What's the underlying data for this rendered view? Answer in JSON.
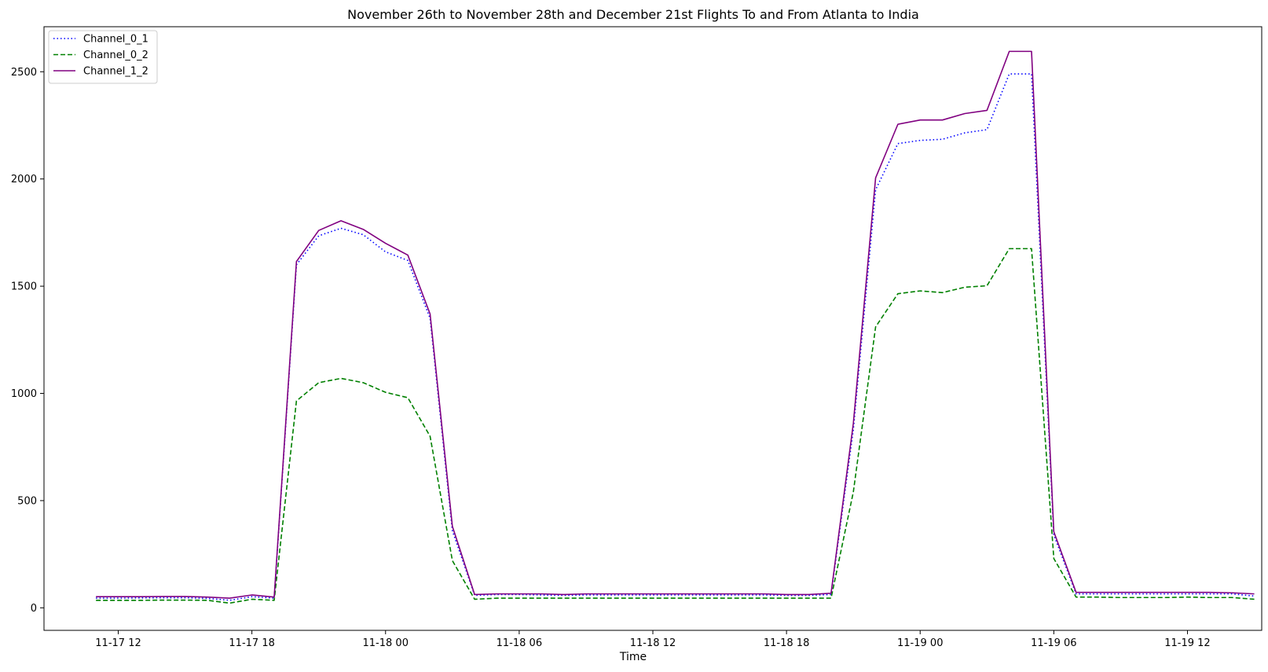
{
  "chart_data": {
    "type": "line",
    "title": "November 26th to November 28th and December 21st Flights To and From Atlanta to India",
    "xlabel": "Time",
    "ylabel": "",
    "x_start": "2023-11-17 11:00",
    "x_step_hours": 1,
    "xlim": [
      "2023-11-17 08:40",
      "2023-11-19 15:20"
    ],
    "ylim": [
      -105,
      2710
    ],
    "x_ticks": [
      "11-17 12",
      "11-17 18",
      "11-18 00",
      "11-18 06",
      "11-18 12",
      "11-18 18",
      "11-19 00",
      "11-19 06",
      "11-19 12"
    ],
    "y_ticks": [
      0,
      500,
      1000,
      1500,
      2000,
      2500
    ],
    "grid": false,
    "legend_position": "top-left",
    "series": [
      {
        "name": "Channel_0_1",
        "color": "#0000ff",
        "style": "dotted",
        "values": [
          45,
          45,
          46,
          47,
          47,
          44,
          35,
          52,
          45,
          1600,
          1735,
          1770,
          1740,
          1660,
          1620,
          1350,
          360,
          58,
          62,
          62,
          60,
          58,
          60,
          60,
          60,
          60,
          60,
          60,
          60,
          60,
          60,
          58,
          58,
          62,
          830,
          1950,
          2165,
          2180,
          2185,
          2215,
          2230,
          2490,
          2490,
          340,
          65,
          65,
          65,
          65,
          65,
          65,
          65,
          65,
          55
        ]
      },
      {
        "name": "Channel_0_2",
        "color": "#008000",
        "style": "dashed",
        "values": [
          35,
          35,
          35,
          36,
          36,
          35,
          22,
          40,
          35,
          965,
          1050,
          1070,
          1050,
          1005,
          980,
          800,
          220,
          40,
          45,
          45,
          45,
          45,
          45,
          45,
          45,
          45,
          45,
          45,
          45,
          45,
          45,
          45,
          45,
          45,
          540,
          1310,
          1465,
          1478,
          1470,
          1495,
          1502,
          1675,
          1675,
          230,
          50,
          50,
          48,
          48,
          48,
          50,
          48,
          48,
          40
        ]
      },
      {
        "name": "Channel_1_2",
        "color": "#800080",
        "style": "solid",
        "values": [
          52,
          52,
          52,
          53,
          53,
          50,
          45,
          60,
          50,
          1615,
          1760,
          1805,
          1765,
          1700,
          1645,
          1370,
          380,
          62,
          65,
          65,
          65,
          62,
          65,
          65,
          65,
          65,
          65,
          65,
          65,
          65,
          65,
          62,
          62,
          68,
          860,
          2005,
          2255,
          2275,
          2275,
          2305,
          2320,
          2595,
          2595,
          355,
          72,
          72,
          72,
          72,
          72,
          72,
          72,
          70,
          65
        ]
      }
    ]
  }
}
